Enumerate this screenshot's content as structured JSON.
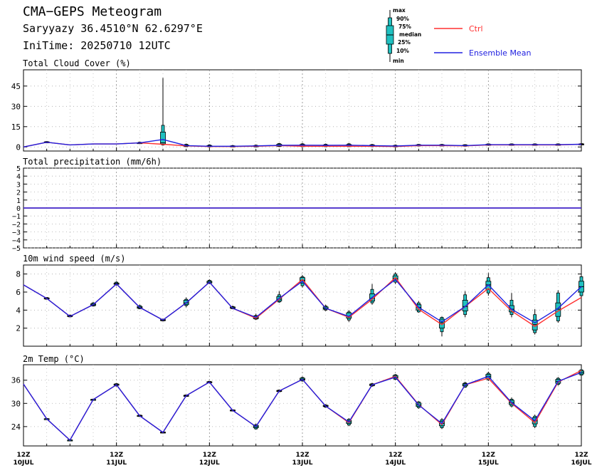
{
  "header": {
    "title": "CMA−GEPS Meteogram",
    "location": "Saryyazy 36.4510°N 62.6297°E",
    "init_time": "IniTime: 20250710 12UTC"
  },
  "legend": {
    "box_labels": [
      "max",
      "90%",
      "75%",
      "median",
      "25%",
      "10%",
      "min"
    ],
    "ctrl_label": "Ctrl",
    "mean_label": "Ensemble Mean",
    "colors": {
      "ctrl": "#ff3030",
      "mean": "#2020e0",
      "box": "#20c0c0"
    }
  },
  "x_axis": {
    "ticks": [
      {
        "top": "12Z",
        "bottom": "10JUL"
      },
      {
        "top": "12Z",
        "bottom": "11JUL"
      },
      {
        "top": "12Z",
        "bottom": "12JUL"
      },
      {
        "top": "12Z",
        "bottom": "13JUL"
      },
      {
        "top": "12Z",
        "bottom": "14JUL"
      },
      {
        "top": "12Z",
        "bottom": "15JUL"
      },
      {
        "top": "12Z",
        "bottom": "16JUL"
      }
    ]
  },
  "chart_data": [
    {
      "type": "box",
      "title": "Total Cloud Cover (%)",
      "ylim": [
        -3,
        57
      ],
      "yticks": [
        0,
        15,
        30,
        45
      ],
      "ytick_labels": [
        "0",
        "15",
        "30",
        "45"
      ],
      "grid": true,
      "x": [
        "10JUL 12Z",
        "10JUL 18Z",
        "11JUL 00Z",
        "11JUL 06Z",
        "11JUL 12Z",
        "11JUL 18Z",
        "12JUL 00Z",
        "12JUL 06Z",
        "12JUL 12Z",
        "12JUL 18Z",
        "13JUL 00Z",
        "13JUL 06Z",
        "13JUL 12Z",
        "13JUL 18Z",
        "14JUL 00Z",
        "14JUL 06Z",
        "14JUL 12Z",
        "14JUL 18Z",
        "15JUL 00Z",
        "15JUL 06Z",
        "15JUL 12Z",
        "15JUL 18Z",
        "16JUL 00Z",
        "16JUL 06Z",
        "16JUL 12Z"
      ],
      "ctrl": [
        0,
        3.5,
        1.5,
        2.2,
        2.2,
        3,
        2,
        0.8,
        0.3,
        0.3,
        0.5,
        1,
        0.5,
        0.5,
        0.5,
        0.5,
        0.3,
        1,
        1,
        0.8,
        1.5,
        1.5,
        1.5,
        1.5,
        2
      ],
      "mean": [
        0,
        3.5,
        1.5,
        2.2,
        2.2,
        3,
        5.5,
        1,
        0.5,
        0.5,
        0.8,
        1.2,
        1.3,
        1.2,
        1.3,
        1,
        0.7,
        1.3,
        1.3,
        1,
        1.7,
        1.7,
        1.7,
        1.7,
        2
      ],
      "boxes": [
        null,
        {
          "min": 3,
          "p10": 3.2,
          "p25": 3.3,
          "median": 3.5,
          "p75": 3.8,
          "p90": 4,
          "max": 4.2
        },
        null,
        null,
        null,
        {
          "min": 2.5,
          "p10": 2.6,
          "p25": 2.8,
          "median": 3,
          "p75": 3.2,
          "p90": 3.5,
          "max": 3.8
        },
        {
          "min": 1,
          "p10": 1.5,
          "p25": 2,
          "median": 3,
          "p75": 11,
          "p90": 16,
          "max": 51
        },
        {
          "min": 0,
          "p10": 0.2,
          "p25": 0.5,
          "median": 0.8,
          "p75": 1.5,
          "p90": 2,
          "max": 2.5
        },
        {
          "min": 0,
          "p10": 0,
          "p25": 0.2,
          "median": 0.4,
          "p75": 1,
          "p90": 1.5,
          "max": 2
        },
        {
          "min": 0,
          "p10": 0,
          "p25": 0.2,
          "median": 0.4,
          "p75": 0.8,
          "p90": 1,
          "max": 1.5
        },
        {
          "min": 0,
          "p10": 0,
          "p25": 0.3,
          "median": 0.5,
          "p75": 1,
          "p90": 1.3,
          "max": 1.8
        },
        {
          "min": 0,
          "p10": 0.3,
          "p25": 0.5,
          "median": 1,
          "p75": 2,
          "p90": 2.5,
          "max": 3
        },
        {
          "min": 0,
          "p10": 0.2,
          "p25": 0.5,
          "median": 1,
          "p75": 1.8,
          "p90": 2.3,
          "max": 3
        },
        {
          "min": 0,
          "p10": 0.2,
          "p25": 0.5,
          "median": 0.8,
          "p75": 1.5,
          "p90": 2,
          "max": 2.5
        },
        {
          "min": 0,
          "p10": 0.2,
          "p25": 0.5,
          "median": 1,
          "p75": 1.8,
          "p90": 2.3,
          "max": 3
        },
        {
          "min": 0,
          "p10": 0.2,
          "p25": 0.4,
          "median": 0.8,
          "p75": 1.4,
          "p90": 1.8,
          "max": 2.2
        },
        {
          "min": 0,
          "p10": 0,
          "p25": 0.3,
          "median": 0.6,
          "p75": 1,
          "p90": 1.3,
          "max": 1.8
        },
        {
          "min": 0.5,
          "p10": 0.7,
          "p25": 0.9,
          "median": 1.2,
          "p75": 1.6,
          "p90": 1.9,
          "max": 2.2
        },
        {
          "min": 0.5,
          "p10": 0.7,
          "p25": 0.9,
          "median": 1.2,
          "p75": 1.6,
          "p90": 1.9,
          "max": 2.2
        },
        {
          "min": 0.3,
          "p10": 0.5,
          "p25": 0.7,
          "median": 1,
          "p75": 1.4,
          "p90": 1.7,
          "max": 2
        },
        {
          "min": 1,
          "p10": 1.2,
          "p25": 1.4,
          "median": 1.6,
          "p75": 2,
          "p90": 2.3,
          "max": 2.6
        },
        {
          "min": 1,
          "p10": 1.2,
          "p25": 1.4,
          "median": 1.6,
          "p75": 2,
          "p90": 2.3,
          "max": 2.6
        },
        {
          "min": 1,
          "p10": 1.2,
          "p25": 1.4,
          "median": 1.6,
          "p75": 2,
          "p90": 2.3,
          "max": 2.6
        },
        {
          "min": 1,
          "p10": 1.2,
          "p25": 1.4,
          "median": 1.6,
          "p75": 2,
          "p90": 2.3,
          "max": 2.6
        },
        {
          "min": 1.5,
          "p10": 1.7,
          "p25": 1.8,
          "median": 2,
          "p75": 2.3,
          "p90": 2.5,
          "max": 2.8
        }
      ]
    },
    {
      "type": "line",
      "title": "Total precipitation (mm/6h)",
      "ylim": [
        -5,
        5
      ],
      "yticks": [
        -5,
        -4,
        -3,
        -2,
        -1,
        0,
        1,
        2,
        3,
        4,
        5
      ],
      "ytick_labels": [
        "−5",
        "−4",
        "−3",
        "−2",
        "−1",
        "0",
        "1",
        "2",
        "3",
        "4",
        "5"
      ],
      "grid": true,
      "ctrl": [
        0,
        0,
        0,
        0,
        0,
        0,
        0,
        0,
        0,
        0,
        0,
        0,
        0,
        0,
        0,
        0,
        0,
        0,
        0,
        0,
        0,
        0,
        0,
        0,
        0
      ],
      "mean": [
        0,
        0,
        0,
        0,
        0,
        0,
        0,
        0,
        0,
        0,
        0,
        0,
        0,
        0,
        0,
        0,
        0,
        0,
        0,
        0,
        0,
        0,
        0,
        0,
        0
      ],
      "boxes": []
    },
    {
      "type": "box",
      "title": "10m wind speed (m/s)",
      "ylim": [
        0,
        9
      ],
      "yticks": [
        2,
        4,
        6,
        8
      ],
      "ytick_labels": [
        "2",
        "4",
        "6",
        "8"
      ],
      "grid": true,
      "ctrl": [
        6.8,
        5.3,
        3.3,
        4.6,
        6.9,
        4.3,
        2.9,
        4.8,
        7.1,
        4.2,
        3.1,
        5.2,
        7.4,
        4.2,
        3.2,
        5.2,
        7.6,
        4.1,
        2.4,
        4.4,
        6.4,
        3.9,
        2.2,
        3.9,
        5.4
      ],
      "mean": [
        6.8,
        5.3,
        3.3,
        4.6,
        6.9,
        4.3,
        2.9,
        4.8,
        7.1,
        4.2,
        3.2,
        5.3,
        7.2,
        4.2,
        3.3,
        5.4,
        7.4,
        4.3,
        2.7,
        4.4,
        6.8,
        4.1,
        2.6,
        4.2,
        6.6
      ],
      "boxes": [
        null,
        {
          "min": 5.2,
          "p10": 5.2,
          "p25": 5.3,
          "median": 5.3,
          "p75": 5.35,
          "p90": 5.4,
          "max": 5.4
        },
        {
          "min": 3.2,
          "p10": 3.25,
          "p25": 3.3,
          "median": 3.35,
          "p75": 3.4,
          "p90": 3.45,
          "max": 3.5
        },
        {
          "min": 4.4,
          "p10": 4.45,
          "p25": 4.5,
          "median": 4.6,
          "p75": 4.7,
          "p90": 4.8,
          "max": 4.9
        },
        {
          "min": 6.7,
          "p10": 6.8,
          "p25": 6.85,
          "median": 6.95,
          "p75": 7,
          "p90": 7.1,
          "max": 7.2
        },
        {
          "min": 4.1,
          "p10": 4.15,
          "p25": 4.2,
          "median": 4.3,
          "p75": 4.4,
          "p90": 4.5,
          "max": 4.6
        },
        {
          "min": 2.75,
          "p10": 2.8,
          "p25": 2.85,
          "median": 2.9,
          "p75": 2.95,
          "p90": 3,
          "max": 3.05
        },
        {
          "min": 4.3,
          "p10": 4.5,
          "p25": 4.6,
          "median": 4.8,
          "p75": 5.1,
          "p90": 5.2,
          "max": 5.4
        },
        {
          "min": 6.9,
          "p10": 6.95,
          "p25": 7,
          "median": 7.1,
          "p75": 7.2,
          "p90": 7.3,
          "max": 7.4
        },
        {
          "min": 4.1,
          "p10": 4.15,
          "p25": 4.2,
          "median": 4.25,
          "p75": 4.35,
          "p90": 4.4,
          "max": 4.5
        },
        {
          "min": 2.9,
          "p10": 3,
          "p25": 3.05,
          "median": 3.15,
          "p75": 3.35,
          "p90": 3.4,
          "max": 3.6
        },
        {
          "min": 4.8,
          "p10": 4.9,
          "p25": 5,
          "median": 5.2,
          "p75": 5.5,
          "p90": 5.7,
          "max": 6.1
        },
        {
          "min": 6.5,
          "p10": 6.7,
          "p25": 7,
          "median": 7.3,
          "p75": 7.6,
          "p90": 7.7,
          "max": 7.9
        },
        {
          "min": 3.9,
          "p10": 4,
          "p25": 4.1,
          "median": 4.2,
          "p75": 4.35,
          "p90": 4.45,
          "max": 4.6
        },
        {
          "min": 2.7,
          "p10": 2.9,
          "p25": 3.1,
          "median": 3.3,
          "p75": 3.7,
          "p90": 3.8,
          "max": 4
        },
        {
          "min": 4.6,
          "p10": 4.8,
          "p25": 5,
          "median": 5.3,
          "p75": 5.8,
          "p90": 6.3,
          "max": 6.9
        },
        {
          "min": 6.9,
          "p10": 7.1,
          "p25": 7.3,
          "median": 7.5,
          "p75": 7.8,
          "p90": 8,
          "max": 8.2
        },
        {
          "min": 3.7,
          "p10": 3.8,
          "p25": 4,
          "median": 4.3,
          "p75": 4.6,
          "p90": 4.8,
          "max": 5
        },
        {
          "min": 1.1,
          "p10": 1.6,
          "p25": 2,
          "median": 2.6,
          "p75": 3,
          "p90": 3.2,
          "max": 3.3
        },
        {
          "min": 3.2,
          "p10": 3.5,
          "p25": 3.9,
          "median": 4.4,
          "p75": 5.1,
          "p90": 5.7,
          "max": 6.1
        },
        {
          "min": 5.6,
          "p10": 5.9,
          "p25": 6.3,
          "median": 6.8,
          "p75": 7.2,
          "p90": 7.6,
          "max": 8.1
        },
        {
          "min": 3.2,
          "p10": 3.5,
          "p25": 3.8,
          "median": 4.1,
          "p75": 4.5,
          "p90": 5.1,
          "max": 5.9
        },
        {
          "min": 1.3,
          "p10": 1.5,
          "p25": 1.8,
          "median": 2.4,
          "p75": 2.9,
          "p90": 3.5,
          "max": 4.1
        },
        {
          "min": 2.6,
          "p10": 2.8,
          "p25": 3.3,
          "median": 4.1,
          "p75": 4.8,
          "p90": 5.9,
          "max": 6.2
        },
        {
          "min": 5.4,
          "p10": 5.6,
          "p25": 6,
          "median": 6.6,
          "p75": 7.2,
          "p90": 7.7,
          "max": 8
        }
      ]
    },
    {
      "type": "box",
      "title": "2m Temp (°C)",
      "ylim": [
        19,
        40
      ],
      "yticks": [
        24,
        30,
        36
      ],
      "ytick_labels": [
        "24",
        "30",
        "36"
      ],
      "grid": true,
      "ctrl": [
        35,
        26,
        20.5,
        31,
        34.8,
        26.8,
        22.5,
        32,
        35.5,
        28.2,
        24,
        33.2,
        36.2,
        29.3,
        25,
        34.8,
        37,
        29.7,
        24.5,
        34.8,
        36.5,
        30,
        25,
        35.5,
        38.5
      ],
      "mean": [
        35,
        26,
        20.5,
        31,
        34.8,
        26.8,
        22.5,
        32,
        35.5,
        28.2,
        24,
        33.2,
        36.2,
        29.3,
        25.2,
        34.8,
        36.8,
        29.6,
        24.8,
        34.8,
        37,
        30.2,
        25.5,
        35.7,
        38
      ],
      "boxes": [
        null,
        {
          "min": 25.8,
          "p10": 25.9,
          "p25": 26,
          "median": 26,
          "p75": 26.05,
          "p90": 26.1,
          "max": 26.2
        },
        {
          "min": 20.3,
          "p10": 20.4,
          "p25": 20.45,
          "median": 20.5,
          "p75": 20.55,
          "p90": 20.6,
          "max": 20.7
        },
        {
          "min": 30.8,
          "p10": 30.9,
          "p25": 30.95,
          "median": 31,
          "p75": 31.05,
          "p90": 31.1,
          "max": 31.2
        },
        {
          "min": 34.4,
          "p10": 34.5,
          "p25": 34.7,
          "median": 34.8,
          "p75": 35,
          "p90": 35.1,
          "max": 35.2
        },
        {
          "min": 26.5,
          "p10": 26.6,
          "p25": 26.7,
          "median": 26.8,
          "p75": 26.9,
          "p90": 27,
          "max": 27.1
        },
        {
          "min": 22.3,
          "p10": 22.35,
          "p25": 22.4,
          "median": 22.5,
          "p75": 22.6,
          "p90": 22.65,
          "max": 22.7
        },
        {
          "min": 31.7,
          "p10": 31.8,
          "p25": 31.9,
          "median": 32,
          "p75": 32.1,
          "p90": 32.2,
          "max": 32.3
        },
        {
          "min": 35.2,
          "p10": 35.3,
          "p25": 35.4,
          "median": 35.5,
          "p75": 35.6,
          "p90": 35.7,
          "max": 35.8
        },
        {
          "min": 28,
          "p10": 28.05,
          "p25": 28.1,
          "median": 28.2,
          "p75": 28.3,
          "p90": 28.35,
          "max": 28.4
        },
        {
          "min": 23.2,
          "p10": 23.4,
          "p25": 23.7,
          "median": 24,
          "p75": 24.3,
          "p90": 24.5,
          "max": 24.8
        },
        {
          "min": 32.9,
          "p10": 33,
          "p25": 33.1,
          "median": 33.2,
          "p75": 33.35,
          "p90": 33.45,
          "max": 33.6
        },
        {
          "min": 35.6,
          "p10": 35.8,
          "p25": 36,
          "median": 36.2,
          "p75": 36.5,
          "p90": 36.7,
          "max": 36.9
        },
        {
          "min": 28.9,
          "p10": 29,
          "p25": 29.2,
          "median": 29.3,
          "p75": 29.5,
          "p90": 29.6,
          "max": 29.8
        },
        {
          "min": 24.1,
          "p10": 24.4,
          "p25": 24.8,
          "median": 25.2,
          "p75": 25.6,
          "p90": 25.9,
          "max": 26.2
        },
        {
          "min": 34.3,
          "p10": 34.5,
          "p25": 34.6,
          "median": 34.8,
          "p75": 35,
          "p90": 35.1,
          "max": 35.3
        },
        {
          "min": 36,
          "p10": 36.2,
          "p25": 36.5,
          "median": 36.8,
          "p75": 37.2,
          "p90": 37.4,
          "max": 37.6
        },
        {
          "min": 28.6,
          "p10": 28.9,
          "p25": 29.2,
          "median": 29.6,
          "p75": 30.1,
          "p90": 30.4,
          "max": 30.6
        },
        {
          "min": 23.4,
          "p10": 23.7,
          "p25": 24.2,
          "median": 24.8,
          "p75": 25.4,
          "p90": 25.8,
          "max": 26.2
        },
        {
          "min": 34,
          "p10": 34.2,
          "p25": 34.5,
          "median": 34.8,
          "p75": 35.1,
          "p90": 35.3,
          "max": 35.6
        },
        {
          "min": 35.8,
          "p10": 36.1,
          "p25": 36.5,
          "median": 37,
          "p75": 37.5,
          "p90": 37.8,
          "max": 38.2
        },
        {
          "min": 29,
          "p10": 29.3,
          "p25": 29.7,
          "median": 30.2,
          "p75": 30.8,
          "p90": 31.1,
          "max": 31.5
        },
        {
          "min": 23.6,
          "p10": 24,
          "p25": 24.7,
          "median": 25.5,
          "p75": 26.3,
          "p90": 26.7,
          "max": 27.1
        },
        {
          "min": 34.6,
          "p10": 34.9,
          "p25": 35.2,
          "median": 35.7,
          "p75": 36.2,
          "p90": 36.5,
          "max": 36.8
        },
        {
          "min": 37,
          "p10": 37.3,
          "p25": 37.6,
          "median": 38,
          "p75": 38.4,
          "p90": 38.7,
          "max": 39
        }
      ]
    }
  ]
}
